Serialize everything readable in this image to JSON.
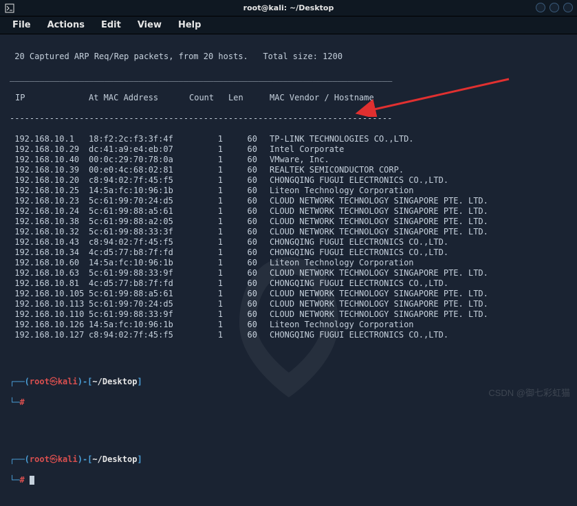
{
  "window": {
    "title": "root@kali: ~/Desktop"
  },
  "menu": {
    "file": "File",
    "actions": "Actions",
    "edit": "Edit",
    "view": "View",
    "help": "Help"
  },
  "summary_line": " 20 Captured ARP Req/Rep packets, from 20 hosts.   Total size: 1200",
  "header": {
    "ip": "IP",
    "mac": "At MAC Address",
    "count": "Count",
    "len": "Len",
    "vendor": "MAC Vendor / Hostname"
  },
  "rows": [
    {
      "ip": "192.168.10.1",
      "mac": "18:f2:2c:f3:3f:4f",
      "count": "1",
      "len": "60",
      "vendor": "TP-LINK TECHNOLOGIES CO.,LTD."
    },
    {
      "ip": "192.168.10.29",
      "mac": "dc:41:a9:e4:eb:07",
      "count": "1",
      "len": "60",
      "vendor": "Intel Corporate"
    },
    {
      "ip": "192.168.10.40",
      "mac": "00:0c:29:70:78:0a",
      "count": "1",
      "len": "60",
      "vendor": "VMware, Inc."
    },
    {
      "ip": "192.168.10.39",
      "mac": "00:e0:4c:68:02:81",
      "count": "1",
      "len": "60",
      "vendor": "REALTEK SEMICONDUCTOR CORP."
    },
    {
      "ip": "192.168.10.20",
      "mac": "c8:94:02:7f:45:f5",
      "count": "1",
      "len": "60",
      "vendor": "CHONGQING FUGUI ELECTRONICS CO.,LTD."
    },
    {
      "ip": "192.168.10.25",
      "mac": "14:5a:fc:10:96:1b",
      "count": "1",
      "len": "60",
      "vendor": "Liteon Technology Corporation"
    },
    {
      "ip": "192.168.10.23",
      "mac": "5c:61:99:70:24:d5",
      "count": "1",
      "len": "60",
      "vendor": "CLOUD NETWORK TECHNOLOGY SINGAPORE PTE. LTD."
    },
    {
      "ip": "192.168.10.24",
      "mac": "5c:61:99:88:a5:61",
      "count": "1",
      "len": "60",
      "vendor": "CLOUD NETWORK TECHNOLOGY SINGAPORE PTE. LTD."
    },
    {
      "ip": "192.168.10.38",
      "mac": "5c:61:99:88:a2:05",
      "count": "1",
      "len": "60",
      "vendor": "CLOUD NETWORK TECHNOLOGY SINGAPORE PTE. LTD."
    },
    {
      "ip": "192.168.10.32",
      "mac": "5c:61:99:88:33:3f",
      "count": "1",
      "len": "60",
      "vendor": "CLOUD NETWORK TECHNOLOGY SINGAPORE PTE. LTD."
    },
    {
      "ip": "192.168.10.43",
      "mac": "c8:94:02:7f:45:f5",
      "count": "1",
      "len": "60",
      "vendor": "CHONGQING FUGUI ELECTRONICS CO.,LTD."
    },
    {
      "ip": "192.168.10.34",
      "mac": "4c:d5:77:b8:7f:fd",
      "count": "1",
      "len": "60",
      "vendor": "CHONGQING FUGUI ELECTRONICS CO.,LTD."
    },
    {
      "ip": "192.168.10.60",
      "mac": "14:5a:fc:10:96:1b",
      "count": "1",
      "len": "60",
      "vendor": "Liteon Technology Corporation"
    },
    {
      "ip": "192.168.10.63",
      "mac": "5c:61:99:88:33:9f",
      "count": "1",
      "len": "60",
      "vendor": "CLOUD NETWORK TECHNOLOGY SINGAPORE PTE. LTD."
    },
    {
      "ip": "192.168.10.81",
      "mac": "4c:d5:77:b8:7f:fd",
      "count": "1",
      "len": "60",
      "vendor": "CHONGQING FUGUI ELECTRONICS CO.,LTD."
    },
    {
      "ip": "192.168.10.105",
      "mac": "5c:61:99:88:a5:61",
      "count": "1",
      "len": "60",
      "vendor": "CLOUD NETWORK TECHNOLOGY SINGAPORE PTE. LTD."
    },
    {
      "ip": "192.168.10.113",
      "mac": "5c:61:99:70:24:d5",
      "count": "1",
      "len": "60",
      "vendor": "CLOUD NETWORK TECHNOLOGY SINGAPORE PTE. LTD."
    },
    {
      "ip": "192.168.10.110",
      "mac": "5c:61:99:88:33:9f",
      "count": "1",
      "len": "60",
      "vendor": "CLOUD NETWORK TECHNOLOGY SINGAPORE PTE. LTD."
    },
    {
      "ip": "192.168.10.126",
      "mac": "14:5a:fc:10:96:1b",
      "count": "1",
      "len": "60",
      "vendor": "Liteon Technology Corporation"
    },
    {
      "ip": "192.168.10.127",
      "mac": "c8:94:02:7f:45:f5",
      "count": "1",
      "len": "60",
      "vendor": "CHONGQING FUGUI ELECTRONICS CO.,LTD."
    }
  ],
  "prompt": {
    "open": "┌──(",
    "user": "root",
    "sep": "㉿",
    "host": "kali",
    "close": ")-[",
    "path": "~/Desktop",
    "end": "]",
    "line2_prefix": "└─",
    "hash": "#"
  },
  "watermark": "CSDN @御七彩虹猫",
  "colors": {
    "bg": "#1a2332",
    "text": "#c5d0dc",
    "arrow": "#e03030"
  }
}
